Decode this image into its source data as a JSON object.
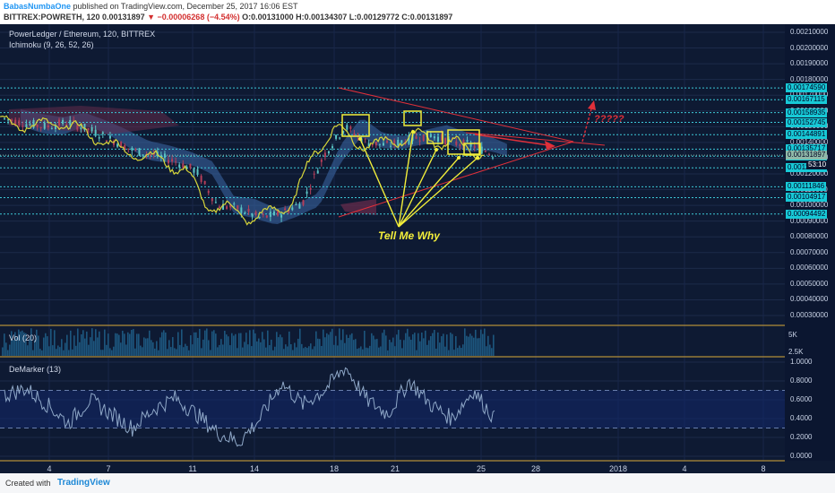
{
  "header": {
    "author": "BabasNumbaOne",
    "published": "published on TradingView.com, December 25, 2017 16:06 EST",
    "symbol": "BITTREX:POWRETH, 120",
    "last": "0.00131897",
    "change": "▼ −0.00006268 (−4.54%)",
    "ohlc": "O:0.00131000 H:0.00134307 L:0.00129772 C:0.00131897"
  },
  "main_panel": {
    "title": "PowerLedger / Ethereum, 120, BITTREX",
    "indicator": "Ichimoku (9, 26, 52, 26)"
  },
  "vol_panel": {
    "label": "Vol (20)",
    "ticks": [
      "5K",
      "2.5K"
    ]
  },
  "dem_panel": {
    "label": "DeMarker (13)"
  },
  "annotations": {
    "tell_me_why": "Tell Me Why",
    "question": "?????"
  },
  "colors": {
    "background": "#0e1a33",
    "up_candle": "#5bc4c4",
    "down_candle": "#b53f5a",
    "ichimoku_line": "#d7d63a",
    "cloud": "#3d6aa8",
    "cloud_red": "#6a2c4b",
    "level_line": "#3cc8d8",
    "trend_red": "#e0303a",
    "annotation_yellow": "#f2ee3a",
    "volume": "#1f5d86"
  },
  "footer": {
    "created": "Created with",
    "brand": "TradingView"
  },
  "chart_data": [
    {
      "type": "line",
      "title": "PowerLedger / Ethereum, 120, BITTREX",
      "xlabel": "",
      "ylabel": "",
      "ylim": [
        0.0,
        0.0022
      ],
      "yticks": [
        "0.00210000",
        "0.00200000",
        "0.00190000",
        "0.00180000",
        "0.00170000",
        "0.00160000",
        "0.00150000",
        "0.00140000",
        "0.00130000",
        "0.00120000",
        "0.00110000",
        "0.00100000",
        "0.00090000",
        "0.00080000",
        "0.00070000",
        "0.00060000",
        "0.00050000",
        "0.00040000",
        "0.00030000"
      ],
      "xticks": [
        "4",
        "7",
        "11",
        "14",
        "18",
        "21",
        "25",
        "28",
        "2018",
        "4",
        "8"
      ],
      "horizontal_levels": [
        "0.00174590",
        "0.00167115",
        "0.00158935",
        "0.00152745",
        "0.00144891",
        "0.00135717",
        "0.00131215",
        "0.00123820",
        "0.00111846",
        "0.00104917",
        "0.00094492"
      ],
      "current_price": "0.00131897",
      "countdown": "53:10",
      "series": [
        {
          "x": [
            "Dec 2",
            "Dec 3",
            "Dec 4",
            "Dec 5",
            "Dec 6",
            "Dec 7",
            "Dec 8",
            "Dec 9",
            "Dec 10",
            "Dec 11",
            "Dec 12",
            "Dec 13",
            "Dec 14",
            "Dec 15",
            "Dec 16",
            "Dec 17",
            "Dec 18",
            "Dec 19",
            "Dec 20",
            "Dec 21",
            "Dec 22",
            "Dec 23",
            "Dec 24",
            "Dec 25"
          ],
          "values": [
            0.00155,
            0.00152,
            0.0015,
            0.00153,
            0.00148,
            0.00142,
            0.00135,
            0.00132,
            0.00128,
            0.00122,
            0.001,
            0.00098,
            0.00092,
            0.00095,
            0.00102,
            0.00132,
            0.0015,
            0.0014,
            0.00138,
            0.00142,
            0.00145,
            0.0014,
            0.00138,
            0.00132
          ]
        }
      ]
    },
    {
      "type": "line",
      "title": "DeMarker (13)",
      "ylim": [
        0.0,
        1.0
      ],
      "yticks": [
        "1.0000",
        "0.8000",
        "0.6000",
        "0.4000",
        "0.2000",
        "0.0000"
      ],
      "bands": [
        0.7,
        0.3
      ],
      "series": [
        {
          "x": [
            "Dec 2",
            "Dec 3",
            "Dec 4",
            "Dec 5",
            "Dec 6",
            "Dec 7",
            "Dec 8",
            "Dec 9",
            "Dec 10",
            "Dec 11",
            "Dec 12",
            "Dec 13",
            "Dec 14",
            "Dec 15",
            "Dec 16",
            "Dec 17",
            "Dec 18",
            "Dec 19",
            "Dec 20",
            "Dec 21",
            "Dec 22",
            "Dec 23",
            "Dec 24",
            "Dec 25"
          ],
          "values": [
            0.65,
            0.72,
            0.55,
            0.35,
            0.6,
            0.45,
            0.3,
            0.5,
            0.62,
            0.45,
            0.25,
            0.15,
            0.4,
            0.78,
            0.55,
            0.7,
            0.95,
            0.6,
            0.45,
            0.8,
            0.55,
            0.4,
            0.7,
            0.4
          ]
        }
      ]
    }
  ]
}
